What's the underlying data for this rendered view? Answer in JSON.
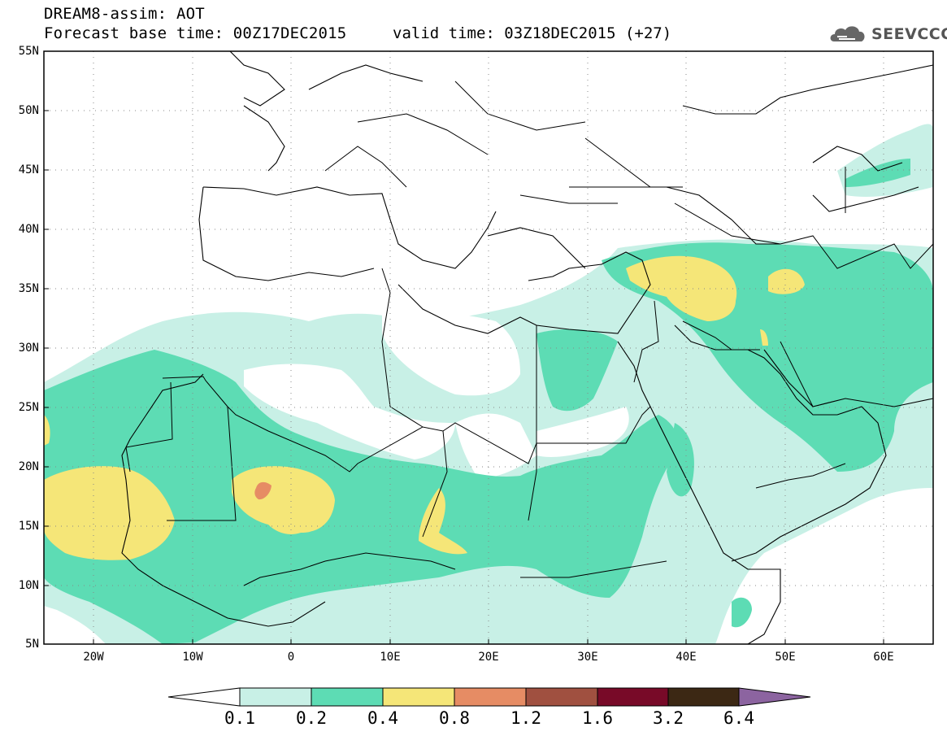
{
  "header": {
    "title": "DREAM8-assim: AOT",
    "base_time": "Forecast base time: 00Z17DEC2015",
    "valid_time": "valid time: 03Z18DEC2015 (+27)"
  },
  "logo": {
    "text": "SEEVCCC",
    "icon": "cloud-icon"
  },
  "axes": {
    "lat_labels": [
      "55N",
      "50N",
      "45N",
      "40N",
      "35N",
      "30N",
      "25N",
      "20N",
      "15N",
      "10N",
      "5N"
    ],
    "lon_labels": [
      "20W",
      "10W",
      "0",
      "10E",
      "20E",
      "30E",
      "40E",
      "50E",
      "60E"
    ],
    "lat_range": [
      5,
      55
    ],
    "lon_range": [
      -25,
      65
    ],
    "grid": "dotted"
  },
  "colorbar": {
    "labels": [
      "0.1",
      "0.2",
      "0.4",
      "0.8",
      "1.2",
      "1.6",
      "3.2",
      "6.4"
    ],
    "colors": [
      "#ffffff",
      "#c8f0e6",
      "#5ddcb4",
      "#f5e678",
      "#e68c64",
      "#a05040",
      "#780a28",
      "#3c2814",
      "#8c64a0"
    ]
  },
  "colors": {
    "ocean": "#ffffff",
    "border": "#000000",
    "level_01": "#c8f0e6",
    "level_02": "#5ddcb4",
    "level_04": "#f5e678",
    "level_08": "#e68c64"
  }
}
